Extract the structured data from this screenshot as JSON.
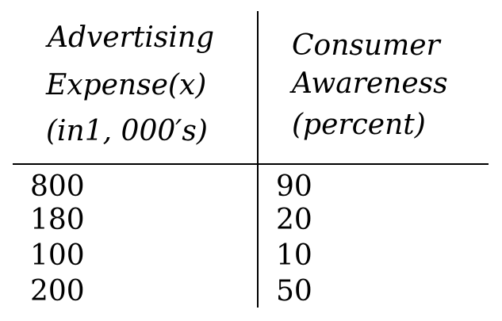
{
  "table": {
    "columns": [
      {
        "header_lines": [
          "Advertising",
          "Expense(x)",
          "(in1, 000′s)"
        ]
      },
      {
        "header_lines": [
          "Consumer",
          "Awareness",
          "(percent)"
        ]
      }
    ],
    "rows": [
      [
        "800",
        "90"
      ],
      [
        "180",
        "20"
      ],
      [
        "100",
        "10"
      ],
      [
        "200",
        "50"
      ]
    ]
  }
}
